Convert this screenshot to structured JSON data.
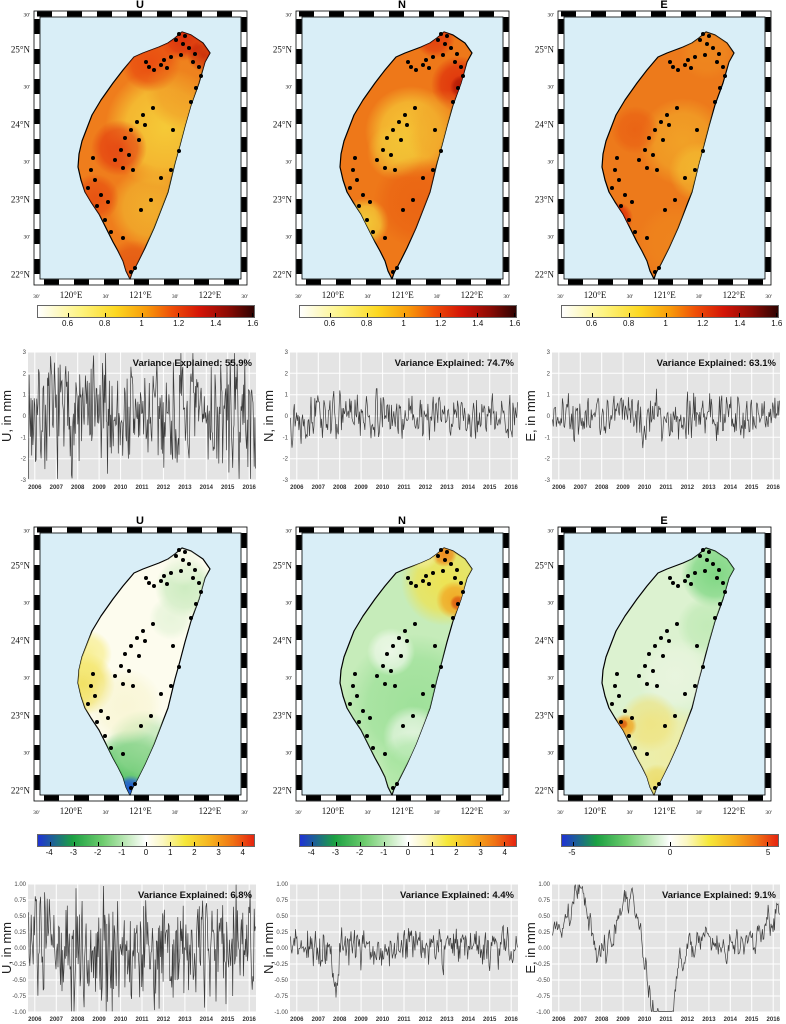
{
  "chart_data": {
    "x_ticks": [
      "2006",
      "2007",
      "2008",
      "2009",
      "2010",
      "2011",
      "2012",
      "2013",
      "2014",
      "2015",
      "2016"
    ],
    "yticks": {
      "row1": [
        [
          "3",
          3
        ],
        [
          "2",
          2
        ],
        [
          "1",
          1
        ],
        [
          "0",
          0
        ],
        [
          "-1",
          -1
        ],
        [
          "-2",
          -2
        ],
        [
          "-3",
          -3
        ]
      ],
      "row2": [
        [
          "1.00",
          1
        ],
        [
          "0.75",
          0.75
        ],
        [
          "0.50",
          0.5
        ],
        [
          "0.25",
          0.25
        ],
        [
          "0.00",
          0
        ],
        [
          "-0.25",
          -0.25
        ],
        [
          "-0.50",
          -0.5
        ],
        [
          "-0.75",
          -0.75
        ],
        [
          "-1.00",
          -1
        ]
      ]
    },
    "map_axes": {
      "ocean_color": "#d9eef7",
      "lat_ticks": [
        [
          "30'",
          1.5
        ],
        [
          "25°N",
          14.5
        ],
        [
          "30'",
          27.5
        ],
        [
          "24°N",
          41.7
        ],
        [
          "30'",
          54.7
        ],
        [
          "23°N",
          68.8
        ],
        [
          "30'",
          81.9
        ],
        [
          "22°N",
          96
        ]
      ],
      "lon_ticks": [
        [
          "30'",
          1.6
        ],
        [
          "120°E",
          17.7
        ],
        [
          "30'",
          33.9
        ],
        [
          "121°E",
          50
        ],
        [
          "30'",
          66.1
        ],
        [
          "122°E",
          82.3
        ],
        [
          "30'",
          98.4
        ]
      ]
    },
    "colormaps": {
      "hot_r": [
        [
          0,
          "#ffffff"
        ],
        [
          0.2,
          "#fdf37e"
        ],
        [
          0.36,
          "#fcd821"
        ],
        [
          0.5,
          "#f89b0a"
        ],
        [
          0.62,
          "#ef4e07"
        ],
        [
          0.75,
          "#d31406"
        ],
        [
          0.88,
          "#8c0b04"
        ],
        [
          1,
          "#2e0301"
        ]
      ],
      "jet_w": [
        [
          0,
          "#1f32d4"
        ],
        [
          0.16,
          "#1ba042"
        ],
        [
          0.3,
          "#6ecc6e"
        ],
        [
          0.42,
          "#c8ecc2"
        ],
        [
          0.5,
          "#ffffff"
        ],
        [
          0.58,
          "#fbf7c0"
        ],
        [
          0.68,
          "#f6e83a"
        ],
        [
          0.8,
          "#f6b01e"
        ],
        [
          0.9,
          "#f07414"
        ],
        [
          1,
          "#e62410"
        ]
      ]
    },
    "stations": [
      [
        143,
        30
      ],
      [
        150,
        34
      ],
      [
        156,
        38
      ],
      [
        162,
        44
      ],
      [
        160,
        52
      ],
      [
        148,
        45
      ],
      [
        138,
        47
      ],
      [
        131,
        50
      ],
      [
        128,
        55
      ],
      [
        134,
        58
      ],
      [
        121,
        60
      ],
      [
        116,
        57
      ],
      [
        113,
        52
      ],
      [
        166,
        57
      ],
      [
        168,
        66
      ],
      [
        163,
        78
      ],
      [
        158,
        92
      ],
      [
        120,
        98
      ],
      [
        110,
        105
      ],
      [
        104,
        112
      ],
      [
        112,
        115
      ],
      [
        98,
        120
      ],
      [
        92,
        128
      ],
      [
        106,
        130
      ],
      [
        88,
        140
      ],
      [
        96,
        145
      ],
      [
        82,
        150
      ],
      [
        90,
        158
      ],
      [
        100,
        160
      ],
      [
        140,
        120
      ],
      [
        146,
        141
      ],
      [
        138,
        160
      ],
      [
        128,
        168
      ],
      [
        60,
        148
      ],
      [
        58,
        160
      ],
      [
        62,
        170
      ],
      [
        55,
        178
      ],
      [
        68,
        185
      ],
      [
        75,
        192
      ],
      [
        64,
        196
      ],
      [
        72,
        210
      ],
      [
        78,
        222
      ],
      [
        90,
        228
      ],
      [
        108,
        200
      ],
      [
        118,
        190
      ],
      [
        98,
        262
      ],
      [
        102,
        258
      ],
      [
        152,
        26
      ],
      [
        146,
        24
      ]
    ],
    "maps": [
      {
        "id": "u-top",
        "title": "U",
        "colorbar": {
          "colormap": "hot_r",
          "ticks": [
            [
              "0.6",
              14
            ],
            [
              "0.8",
              31
            ],
            [
              "1",
              48
            ],
            [
              "1.2",
              65
            ],
            [
              "1.4",
              82
            ],
            [
              "1.6",
              99
            ]
          ]
        },
        "field": {
          "base": "#ef7d1c",
          "blobs": [
            [
              132,
              118,
              60,
              "#f6d23a",
              0.9
            ],
            [
              118,
              198,
              42,
              "#f2c836",
              0.65
            ],
            [
              150,
              27,
              24,
              "#d92a0b",
              0.9
            ],
            [
              118,
              52,
              30,
              "#e8430e",
              0.8
            ],
            [
              86,
              138,
              28,
              "#e2330e",
              0.75
            ],
            [
              62,
              188,
              24,
              "#e5420e",
              0.7
            ],
            [
              100,
              256,
              26,
              "#e04a10",
              0.65
            ],
            [
              170,
              46,
              16,
              "#c41d07",
              0.8
            ],
            [
              152,
              80,
              40,
              "#ee8a20",
              0.5
            ]
          ]
        }
      },
      {
        "id": "n-top",
        "title": "N",
        "colorbar": {
          "colormap": "hot_r",
          "ticks": [
            [
              "0.6",
              14
            ],
            [
              "0.8",
              31
            ],
            [
              "1",
              48
            ],
            [
              "1.2",
              65
            ],
            [
              "1.4",
              82
            ],
            [
              "1.6",
              99
            ]
          ]
        },
        "field": {
          "base": "#ee7819",
          "blobs": [
            [
              116,
              122,
              46,
              "#f6d23a",
              0.85
            ],
            [
              100,
              142,
              28,
              "#f2c838",
              0.6
            ],
            [
              70,
              212,
              24,
              "#f4d63c",
              0.85
            ],
            [
              164,
              74,
              28,
              "#de2d0b",
              0.9
            ],
            [
              167,
              77,
              12,
              "#ae1805",
              0.9
            ],
            [
              124,
              192,
              46,
              "#e8560f",
              0.55
            ],
            [
              140,
              28,
              20,
              "#e0380c",
              0.85
            ],
            [
              150,
              120,
              40,
              "#f0a028",
              0.5
            ]
          ]
        }
      },
      {
        "id": "e-top",
        "title": "E",
        "colorbar": {
          "colormap": "hot_r",
          "ticks": [
            [
              "0.6",
              14
            ],
            [
              "0.8",
              31
            ],
            [
              "1",
              48
            ],
            [
              "1.2",
              65
            ],
            [
              "1.4",
              82
            ],
            [
              "1.6",
              99
            ]
          ]
        },
        "field": {
          "base": "#ed7a1b",
          "blobs": [
            [
              126,
              132,
              44,
              "#f3b22c",
              0.7
            ],
            [
              142,
              162,
              30,
              "#f4c634",
              0.65
            ],
            [
              60,
              208,
              16,
              "#dd2a0a",
              0.9
            ],
            [
              58,
              206,
              7,
              "#b81b05",
              0.9
            ],
            [
              78,
              120,
              24,
              "#e8520f",
              0.55
            ],
            [
              150,
              42,
              28,
              "#ef8c20",
              0.7
            ],
            [
              118,
              232,
              38,
              "#ef8a1e",
              0.6
            ]
          ]
        }
      },
      {
        "id": "u-bot",
        "title": "U",
        "colorbar": {
          "colormap": "jet_w",
          "ticks": [
            [
              "-4",
              5.6
            ],
            [
              "-3",
              16.7
            ],
            [
              "-2",
              27.8
            ],
            [
              "-1",
              38.9
            ],
            [
              "0",
              50
            ],
            [
              "1",
              61.1
            ],
            [
              "2",
              72.2
            ],
            [
              "3",
              83.3
            ],
            [
              "4",
              94.4
            ]
          ]
        },
        "field": {
          "base": "#fdfcee",
          "blobs": [
            [
              100,
              247,
              44,
              "#35b84a",
              0.9
            ],
            [
              98,
              263,
              14,
              "#1a50dc",
              0.95
            ],
            [
              110,
              222,
              38,
              "#a6dea0",
              0.7
            ],
            [
              152,
              62,
              30,
              "#c2e8b6",
              0.8
            ],
            [
              138,
              92,
              22,
              "#daf0ce",
              0.6
            ],
            [
              50,
              158,
              32,
              "#f0dd4c",
              0.85
            ],
            [
              55,
              128,
              24,
              "#f6ea72",
              0.7
            ],
            [
              150,
              40,
              20,
              "#eef6e0",
              0.6
            ],
            [
              92,
              180,
              38,
              "#f6f2c6",
              0.6
            ]
          ]
        }
      },
      {
        "id": "n-bot",
        "title": "N",
        "colorbar": {
          "colormap": "jet_w",
          "ticks": [
            [
              "-4",
              5.6
            ],
            [
              "-3",
              16.7
            ],
            [
              "-2",
              27.8
            ],
            [
              "-1",
              38.9
            ],
            [
              "0",
              50
            ],
            [
              "1",
              61.1
            ],
            [
              "2",
              72.2
            ],
            [
              "3",
              83.3
            ],
            [
              "4",
              94.4
            ]
          ]
        },
        "field": {
          "base": "#c6ecba",
          "blobs": [
            [
              120,
              180,
              72,
              "#8edc8c",
              0.7
            ],
            [
              118,
              210,
              30,
              "#f0f8ec",
              0.8
            ],
            [
              96,
              126,
              24,
              "#f4faf0",
              0.85
            ],
            [
              150,
              56,
              44,
              "#f2e248",
              0.9
            ],
            [
              160,
              74,
              19,
              "#f2a21e",
              0.9
            ],
            [
              163,
              77,
              8,
              "#dc5810",
              0.95
            ],
            [
              149,
              28,
              13,
              "#ee8418",
              0.9
            ],
            [
              128,
              28,
              16,
              "#f4ee9a",
              0.8
            ],
            [
              118,
              242,
              36,
              "#9ce296",
              0.6
            ]
          ]
        }
      },
      {
        "id": "e-bot",
        "title": "E",
        "colorbar": {
          "colormap": "jet_w",
          "ticks": [
            [
              "-5",
              5
            ],
            [
              "0",
              50
            ],
            [
              "5",
              95
            ]
          ]
        },
        "field": {
          "base": "#dcf2d0",
          "blobs": [
            [
              158,
              48,
              34,
              "#6fd276",
              0.85
            ],
            [
              150,
              100,
              30,
              "#b2e6a8",
              0.6
            ],
            [
              118,
              150,
              38,
              "#eef6e4",
              0.7
            ],
            [
              112,
              228,
              50,
              "#f2ec9c",
              0.85
            ],
            [
              92,
              196,
              30,
              "#f0e27a",
              0.8
            ],
            [
              68,
              200,
              12,
              "#f0a21e",
              0.95
            ],
            [
              66,
              198,
              5,
              "#d85c10",
              0.95
            ],
            [
              100,
              256,
              18,
              "#ecd95e",
              0.8
            ]
          ]
        }
      }
    ],
    "timeseries": [
      {
        "type": "line",
        "ylabel": "U, in mm",
        "annotation": "Variance Explained: 55.9%",
        "yscale": "row1",
        "ylim": 3,
        "x_range": [
          2006,
          2016
        ],
        "gen": {
          "seed": 7,
          "n": 360,
          "sigma": 1.5,
          "smooth": 0.1,
          "clip": 2.95
        }
      },
      {
        "type": "line",
        "ylabel": "N, in mm",
        "annotation": "Variance Explained: 74.7%",
        "yscale": "row1",
        "ylim": 3,
        "x_range": [
          2006,
          2016
        ],
        "gen": {
          "seed": 13,
          "n": 300,
          "sigma": 0.55,
          "smooth": 0.3,
          "clip": 2.0
        }
      },
      {
        "type": "line",
        "ylabel": "E, in mm",
        "annotation": "Variance Explained: 63.1%",
        "yscale": "row1",
        "ylim": 3,
        "x_range": [
          2006,
          2016
        ],
        "gen": {
          "seed": 21,
          "n": 300,
          "sigma": 0.6,
          "smooth": 0.3,
          "clip": 2.0
        }
      },
      {
        "type": "line",
        "ylabel": "U, in mm",
        "annotation": "Variance Explained: 6.8%",
        "yscale": "row2",
        "ylim": 1,
        "x_range": [
          2006,
          2016
        ],
        "gen": {
          "seed": 31,
          "n": 340,
          "sigma": 0.5,
          "smooth": 0.12,
          "clip": 0.99
        }
      },
      {
        "type": "line",
        "ylabel": "N, in mm",
        "annotation": "Variance Explained: 4.4%",
        "yscale": "row2",
        "ylim": 1,
        "x_range": [
          2006,
          2016
        ],
        "gen": {
          "seed": 37,
          "n": 320,
          "sigma": 0.16,
          "smooth": 0.3,
          "clip": 0.8
        },
        "bias": [
          [
            0,
            0
          ],
          [
            0.18,
            0
          ],
          [
            0.2,
            -0.4
          ],
          [
            0.22,
            0
          ],
          [
            1,
            0
          ]
        ]
      },
      {
        "type": "line",
        "ylabel": "E, in mm",
        "annotation": "Variance Explained: 9.1%",
        "yscale": "row2",
        "ylim": 1,
        "x_range": [
          2006,
          2016
        ],
        "gen": {
          "seed": 41,
          "n": 320,
          "sigma": 0.12,
          "smooth": 0.55,
          "clip": 0.99
        },
        "bias": [
          [
            0,
            0.1
          ],
          [
            0.08,
            0.3
          ],
          [
            0.12,
            0.45
          ],
          [
            0.2,
            -0.1
          ],
          [
            0.3,
            0.25
          ],
          [
            0.35,
            0.4
          ],
          [
            0.4,
            -0.1
          ],
          [
            0.45,
            -0.5
          ],
          [
            0.49,
            -0.8
          ],
          [
            0.52,
            -0.55
          ],
          [
            0.56,
            -0.1
          ],
          [
            0.65,
            0.05
          ],
          [
            0.8,
            0
          ],
          [
            0.9,
            0.1
          ],
          [
            1,
            0.25
          ]
        ]
      }
    ]
  }
}
